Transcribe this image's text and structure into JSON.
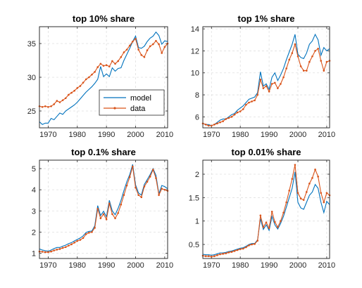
{
  "colors": {
    "model": "#0072BD",
    "data": "#D95319"
  },
  "chart_data": [
    {
      "type": "line",
      "title": "top 10% share",
      "xlabel": "",
      "ylabel": "",
      "xlim": [
        1967,
        2011
      ],
      "ylim": [
        22.5,
        37.5
      ],
      "xticks": [
        1970,
        1980,
        1990,
        2000,
        2010
      ],
      "yticks": [
        25,
        30,
        35
      ],
      "grid": true,
      "legend": {
        "position": "bottom-right",
        "entries": [
          "model",
          "data"
        ]
      },
      "x": [
        1967,
        1968,
        1969,
        1970,
        1971,
        1972,
        1973,
        1974,
        1975,
        1976,
        1977,
        1978,
        1979,
        1980,
        1981,
        1982,
        1983,
        1984,
        1985,
        1986,
        1987,
        1988,
        1989,
        1990,
        1991,
        1992,
        1993,
        1994,
        1995,
        1996,
        1997,
        1998,
        1999,
        2000,
        2001,
        2002,
        2003,
        2004,
        2005,
        2006,
        2007,
        2008,
        2009,
        2010,
        2011
      ],
      "series": [
        {
          "name": "model",
          "values": [
            23.4,
            23.0,
            23.2,
            23.2,
            23.9,
            23.7,
            24.2,
            24.7,
            24.5,
            25.0,
            25.3,
            25.6,
            25.9,
            26.3,
            26.8,
            27.3,
            27.8,
            28.2,
            28.6,
            29.1,
            29.7,
            31.6,
            30.1,
            30.5,
            30.1,
            31.4,
            30.9,
            31.3,
            31.4,
            32.5,
            33.4,
            34.3,
            35.3,
            36.1,
            34.4,
            34.3,
            34.6,
            35.3,
            35.8,
            36.1,
            36.7,
            36.2,
            34.9,
            35.4,
            35.3
          ]
        },
        {
          "name": "data",
          "values": [
            25.7,
            25.6,
            25.7,
            25.6,
            25.7,
            26.0,
            26.5,
            26.3,
            26.6,
            26.9,
            27.4,
            27.7,
            28.0,
            28.4,
            28.7,
            29.2,
            29.7,
            30.0,
            30.4,
            30.8,
            31.5,
            32.0,
            31.7,
            31.8,
            31.6,
            32.4,
            32.0,
            32.4,
            33.0,
            33.7,
            34.1,
            34.7,
            35.3,
            35.7,
            34.1,
            33.3,
            33.0,
            34.0,
            34.6,
            34.9,
            35.4,
            34.9,
            33.6,
            34.5,
            35.0
          ]
        }
      ]
    },
    {
      "type": "line",
      "title": "top 1% share",
      "xlabel": "",
      "ylabel": "",
      "xlim": [
        1967,
        2011
      ],
      "ylim": [
        5,
        14.2
      ],
      "xticks": [
        1970,
        1980,
        1990,
        2000,
        2010
      ],
      "yticks": [
        6,
        8,
        10,
        12,
        14
      ],
      "grid": true,
      "x": [
        1967,
        1968,
        1969,
        1970,
        1971,
        1972,
        1973,
        1974,
        1975,
        1976,
        1977,
        1978,
        1979,
        1980,
        1981,
        1982,
        1983,
        1984,
        1985,
        1986,
        1987,
        1988,
        1989,
        1990,
        1991,
        1992,
        1993,
        1994,
        1995,
        1996,
        1997,
        1998,
        1999,
        2000,
        2001,
        2002,
        2003,
        2004,
        2005,
        2006,
        2007,
        2008,
        2009,
        2010,
        2011
      ],
      "series": [
        {
          "name": "model",
          "values": [
            5.4,
            5.3,
            5.3,
            5.2,
            5.3,
            5.5,
            5.7,
            5.8,
            5.8,
            6.0,
            6.2,
            6.3,
            6.6,
            6.8,
            7.0,
            7.3,
            7.6,
            7.7,
            7.8,
            8.2,
            10.1,
            8.8,
            9.0,
            8.5,
            9.6,
            10.0,
            9.3,
            9.8,
            10.4,
            11.2,
            11.9,
            12.6,
            13.5,
            11.7,
            11.4,
            11.3,
            11.8,
            12.6,
            12.9,
            13.5,
            13.0,
            11.6,
            12.3,
            12.0,
            12.2
          ]
        },
        {
          "name": "data",
          "values": [
            5.4,
            5.3,
            5.2,
            5.2,
            5.3,
            5.4,
            5.5,
            5.6,
            5.8,
            5.9,
            6.0,
            6.2,
            6.4,
            6.5,
            6.7,
            7.1,
            7.3,
            7.4,
            7.5,
            8.0,
            9.4,
            8.6,
            8.8,
            8.3,
            9.0,
            9.1,
            8.6,
            9.0,
            9.6,
            10.4,
            11.2,
            11.8,
            12.6,
            11.5,
            10.6,
            10.2,
            10.2,
            11.0,
            11.5,
            12.0,
            12.2,
            11.1,
            10.2,
            11.0,
            11.1
          ]
        }
      ]
    },
    {
      "type": "line",
      "title": "top 0.1% share",
      "xlabel": "",
      "ylabel": "",
      "xlim": [
        1967,
        2011
      ],
      "ylim": [
        0.75,
        5.4
      ],
      "xticks": [
        1970,
        1980,
        1990,
        2000,
        2010
      ],
      "yticks": [
        1,
        2,
        3,
        4,
        5
      ],
      "grid": true,
      "x": [
        1967,
        1968,
        1969,
        1970,
        1971,
        1972,
        1973,
        1974,
        1975,
        1976,
        1977,
        1978,
        1979,
        1980,
        1981,
        1982,
        1983,
        1984,
        1985,
        1986,
        1987,
        1988,
        1989,
        1990,
        1991,
        1992,
        1993,
        1994,
        1995,
        1996,
        1997,
        1998,
        1999,
        2000,
        2001,
        2002,
        2003,
        2004,
        2005,
        2006,
        2007,
        2008,
        2009,
        2010,
        2011
      ],
      "series": [
        {
          "name": "model",
          "values": [
            1.2,
            1.15,
            1.12,
            1.1,
            1.15,
            1.22,
            1.27,
            1.27,
            1.33,
            1.38,
            1.45,
            1.5,
            1.58,
            1.65,
            1.72,
            1.82,
            1.98,
            2.03,
            2.05,
            2.3,
            3.25,
            2.78,
            2.98,
            2.72,
            3.5,
            3.0,
            2.82,
            3.12,
            3.5,
            3.96,
            4.38,
            4.72,
            5.2,
            4.23,
            3.85,
            3.75,
            4.25,
            4.48,
            4.72,
            5.0,
            4.68,
            3.8,
            4.2,
            4.15,
            4.05
          ]
        },
        {
          "name": "data",
          "values": [
            1.08,
            1.07,
            1.05,
            1.05,
            1.08,
            1.13,
            1.17,
            1.2,
            1.25,
            1.29,
            1.36,
            1.42,
            1.5,
            1.58,
            1.63,
            1.72,
            1.9,
            1.97,
            2.0,
            2.2,
            3.1,
            2.65,
            2.85,
            2.6,
            3.35,
            2.85,
            2.65,
            2.9,
            3.3,
            3.75,
            4.2,
            4.6,
            5.1,
            4.1,
            3.75,
            3.65,
            4.15,
            4.38,
            4.62,
            4.95,
            4.55,
            3.75,
            4.05,
            4.0,
            3.95
          ]
        }
      ]
    },
    {
      "type": "line",
      "title": "top 0.01% share",
      "xlabel": "",
      "ylabel": "",
      "xlim": [
        1967,
        2011
      ],
      "ylim": [
        0.2,
        2.3
      ],
      "xticks": [
        1970,
        1980,
        1990,
        2000,
        2010
      ],
      "yticks": [
        0.5,
        1,
        1.5,
        2
      ],
      "grid": true,
      "x": [
        1967,
        1968,
        1969,
        1970,
        1971,
        1972,
        1973,
        1974,
        1975,
        1976,
        1977,
        1978,
        1979,
        1980,
        1981,
        1982,
        1983,
        1984,
        1985,
        1986,
        1987,
        1988,
        1989,
        1990,
        1991,
        1992,
        1993,
        1994,
        1995,
        1996,
        1997,
        1998,
        1999,
        2000,
        2001,
        2002,
        2003,
        2004,
        2005,
        2006,
        2007,
        2008,
        2009,
        2010,
        2011
      ],
      "series": [
        {
          "name": "model",
          "values": [
            0.29,
            0.28,
            0.28,
            0.27,
            0.28,
            0.3,
            0.32,
            0.32,
            0.33,
            0.35,
            0.36,
            0.38,
            0.4,
            0.42,
            0.43,
            0.46,
            0.5,
            0.52,
            0.52,
            0.6,
            1.05,
            0.82,
            0.92,
            0.8,
            1.1,
            0.92,
            0.83,
            0.95,
            1.1,
            1.3,
            1.5,
            1.7,
            2.05,
            1.4,
            1.28,
            1.25,
            1.4,
            1.55,
            1.62,
            1.78,
            1.7,
            1.4,
            1.18,
            1.42,
            1.35
          ]
        },
        {
          "name": "data",
          "values": [
            0.26,
            0.25,
            0.25,
            0.24,
            0.25,
            0.27,
            0.29,
            0.3,
            0.31,
            0.33,
            0.34,
            0.36,
            0.38,
            0.4,
            0.41,
            0.44,
            0.48,
            0.5,
            0.51,
            0.58,
            1.12,
            0.87,
            0.97,
            0.85,
            1.2,
            0.98,
            0.87,
            1.0,
            1.18,
            1.4,
            1.65,
            1.9,
            2.2,
            1.6,
            1.48,
            1.45,
            1.62,
            1.8,
            1.92,
            2.1,
            1.95,
            1.6,
            1.4,
            1.6,
            1.55
          ]
        }
      ]
    }
  ]
}
